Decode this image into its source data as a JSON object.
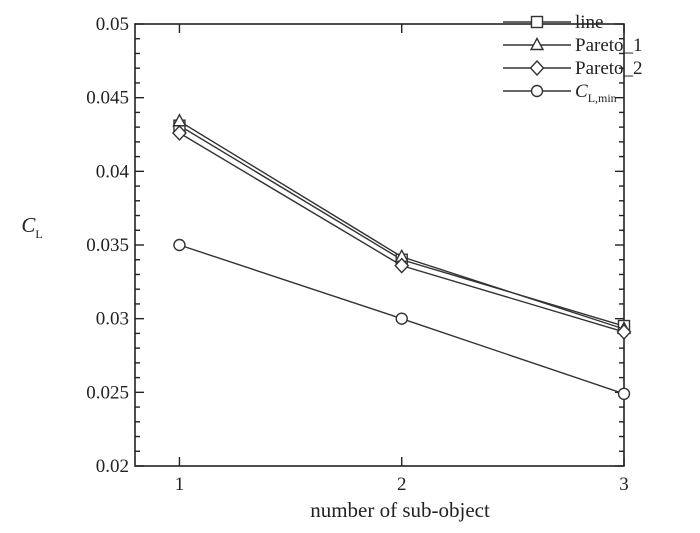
{
  "chart_data": {
    "type": "line",
    "xlabel": "number of sub-object",
    "ylabel": {
      "main": "C",
      "sub": "L"
    },
    "x": [
      1,
      2,
      3
    ],
    "xlim": [
      0.8,
      3.0
    ],
    "ylim": [
      0.02,
      0.05
    ],
    "xticks": [
      "1",
      "2",
      "3"
    ],
    "yticks": [
      "0.02",
      "0.025",
      "0.03",
      "0.035",
      "0.04",
      "0.045",
      "0.05"
    ],
    "grid": false,
    "legend_position": "top-right",
    "series": [
      {
        "name": "line",
        "marker": "square",
        "values": [
          0.0431,
          0.034,
          0.0295
        ]
      },
      {
        "name": "Pareto_1",
        "marker": "triangle",
        "values": [
          0.0434,
          0.0342,
          0.0293
        ]
      },
      {
        "name": "Pareto_2",
        "marker": "diamond",
        "values": [
          0.0426,
          0.0336,
          0.0291
        ]
      },
      {
        "name": "C",
        "name_sub": "L,min",
        "marker": "circle",
        "values": [
          0.035,
          0.03,
          0.0249
        ]
      }
    ]
  }
}
